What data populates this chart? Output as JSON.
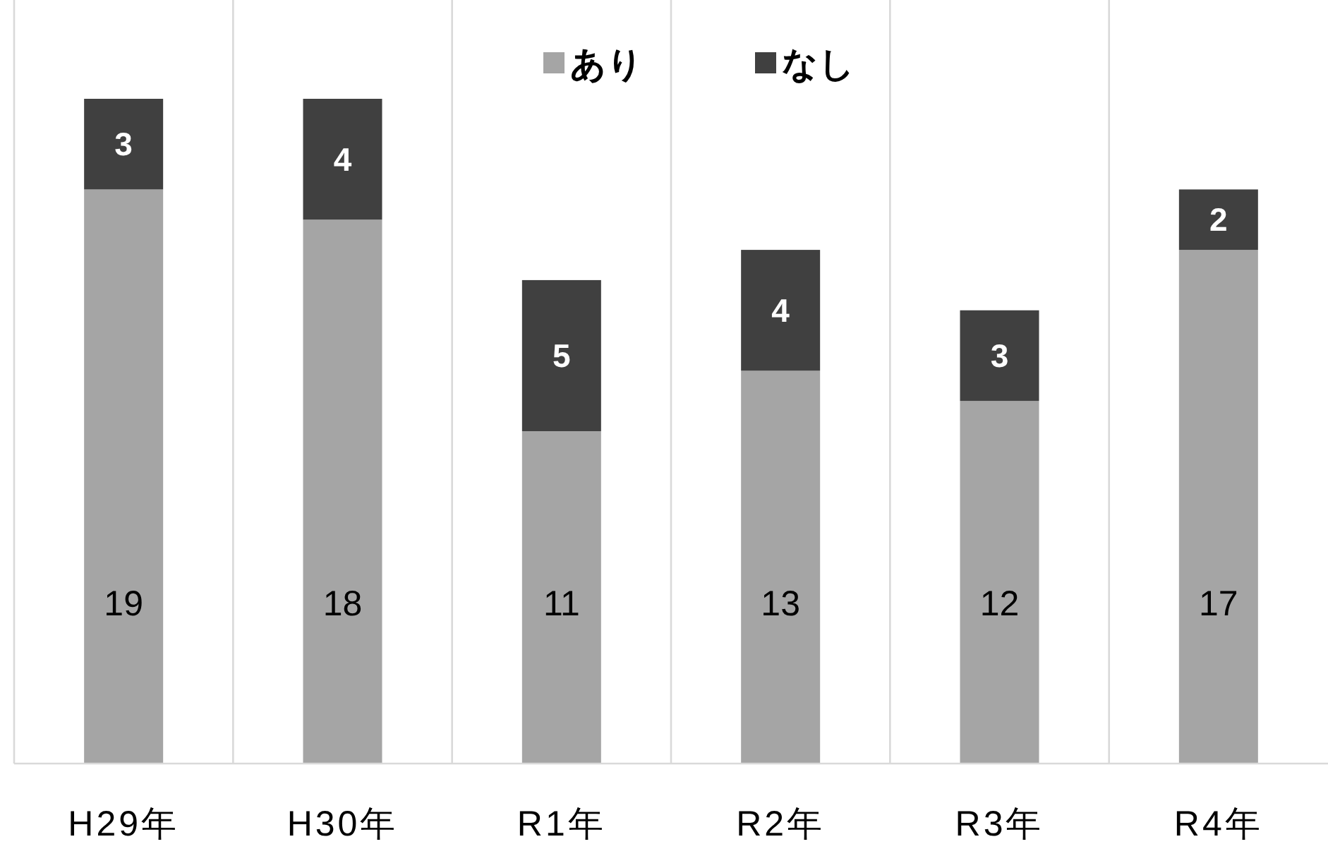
{
  "chart_data": {
    "type": "bar",
    "stacked": true,
    "categories": [
      "H29年",
      "H30年",
      "R1年",
      "R2年",
      "R3年",
      "R4年"
    ],
    "series": [
      {
        "name": "あり",
        "color": "#a5a5a5",
        "values": [
          19,
          18,
          11,
          13,
          12,
          17
        ]
      },
      {
        "name": "なし",
        "color": "#404040",
        "values": [
          3,
          4,
          5,
          4,
          3,
          2
        ]
      }
    ],
    "data_labels": true,
    "legend": "top",
    "grid": "x"
  }
}
